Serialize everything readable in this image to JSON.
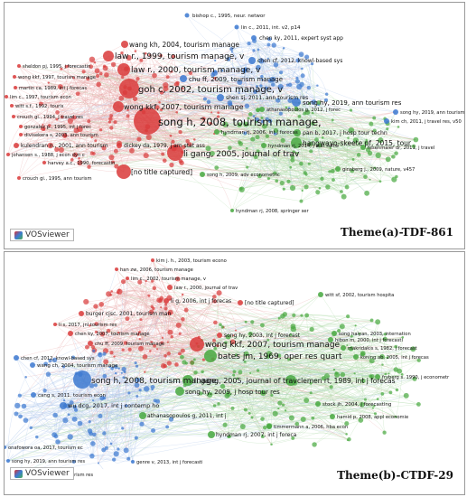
{
  "panel_a": {
    "caption": "Theme(a)-TDF-861",
    "brand": "VOSviewer",
    "labels": [
      {
        "text": "bishop c., 1995, neur. networ",
        "cluster": "blue"
      },
      {
        "text": "lin c., 2011, int. v2, p14",
        "cluster": "blue"
      },
      {
        "text": "chen ky, 2011, expert syst app",
        "cluster": "blue"
      },
      {
        "text": "wang kh, 2004, tourism manage",
        "cluster": "red"
      },
      {
        "text": "law r., 1999, tourism manage, v",
        "cluster": "red"
      },
      {
        "text": "chen cf, 2012, knowl-based sys",
        "cluster": "blue"
      },
      {
        "text": "sheldon pj, 1995, j forecastin",
        "cluster": "red"
      },
      {
        "text": "law r., 2000, tourism manage, v",
        "cluster": "red"
      },
      {
        "text": "wong kkf, 1997, tourism manage",
        "cluster": "red"
      },
      {
        "text": "chu ff, 2009, tourism manage",
        "cluster": "blue"
      },
      {
        "text": "martin ca, 1989, int j forecas",
        "cluster": "red"
      },
      {
        "text": "goh c, 2002, tourism manage, v",
        "cluster": "red"
      },
      {
        "text": "lim c., 1997, tourism econ",
        "cluster": "red"
      },
      {
        "text": "witt s.f., 1992, touris",
        "cluster": "red"
      },
      {
        "text": "crouch gi., 1994, j travel res",
        "cluster": "red"
      },
      {
        "text": "song hy, 2019, ann tourism res",
        "cluster": "blue"
      },
      {
        "text": "wong kkf, 2007, tourism manage",
        "cluster": "red"
      },
      {
        "text": "shen sj, 2011, ann tourism res",
        "cluster": "blue"
      },
      {
        "text": "gonzalez p., 1995, int j forec",
        "cluster": "red"
      },
      {
        "text": "divisekera s, 2003, ann tourism",
        "cluster": "red"
      },
      {
        "text": "song h, 2008, tourism manage,",
        "cluster": "red"
      },
      {
        "text": "kulendran n., 2001, ann tourism",
        "cluster": "red"
      },
      {
        "text": "johansen s., 1988, j econ dyn c",
        "cluster": "red"
      },
      {
        "text": "pan b, 2017, j hosp tour techn",
        "cluster": "green"
      },
      {
        "text": "li gang, 2005, journal of trav",
        "cluster": "red"
      },
      {
        "text": "hangwayo-skeete pf, 2015, tour",
        "cluster": "green"
      },
      {
        "text": "harvey a.c., 1990, forecastin",
        "cluster": "red"
      },
      {
        "text": "dickey da, 1979, j am stat ass",
        "cluster": "red"
      },
      {
        "text": "hyndman rj, 2006, int j forecas",
        "cluster": "green"
      },
      {
        "text": "crouch gi., 1995, ann tourism",
        "cluster": "red"
      },
      {
        "text": "hyndman rj, 2014, j stat softw",
        "cluster": "green"
      },
      {
        "text": "[no title captured]",
        "cluster": "red"
      },
      {
        "text": "song h, 2009, adv econometric",
        "cluster": "green"
      },
      {
        "text": "ginsberg j., 2009, nature, v457",
        "cluster": "green"
      },
      {
        "text": "fesenmaier dr, 2011, j travel",
        "cluster": "green"
      },
      {
        "text": "hyndman rj, 2008, springer ser",
        "cluster": "green"
      },
      {
        "text": "song hy, 2019, ann tourism res",
        "cluster": "blue"
      },
      {
        "text": "kim ch, 2011, j travel res, v50",
        "cluster": "blue"
      },
      {
        "text": "athanasopoulos g, 2012, j forec",
        "cluster": "green"
      }
    ]
  },
  "panel_b": {
    "caption": "Theme(b)-CTDF-29",
    "brand": "VOSviewer",
    "labels": [
      {
        "text": "kim j. h., 2003, tourism econo",
        "cluster": "red"
      },
      {
        "text": "han zw, 2006, tourism manage",
        "cluster": "red"
      },
      {
        "text": "lim c., 2002, tourism manage, v",
        "cluster": "red"
      },
      {
        "text": "law r., 2000, journal of trav",
        "cluster": "red"
      },
      {
        "text": "li g, 2006, int j forecas",
        "cluster": "red"
      },
      {
        "text": "[no title captured]",
        "cluster": "red"
      },
      {
        "text": "witt sf, 2002, tourism hospita",
        "cluster": "green"
      },
      {
        "text": "burger cjsc, 2001, tourism man",
        "cluster": "red"
      },
      {
        "text": "li s, 2017, jnl tourism res",
        "cluster": "red"
      },
      {
        "text": "song hy, 2003, int j forecast",
        "cluster": "red"
      },
      {
        "text": "song haiyan, 2003, internation",
        "cluster": "green"
      },
      {
        "text": "chen ky, 2007, tourism manage",
        "cluster": "red"
      },
      {
        "text": "hibon m, 2000, int j forecasti",
        "cluster": "green"
      },
      {
        "text": "chu ff, 2009, tourism manage",
        "cluster": "red"
      },
      {
        "text": "makridakis s, 1982, j forecast",
        "cluster": "green"
      },
      {
        "text": "wong kkf, 2007, tourism manage",
        "cluster": "red"
      },
      {
        "text": "chen cf, 2012, knowl-based sys",
        "cluster": "blue"
      },
      {
        "text": "bates jm, 1969, oper res quart",
        "cluster": "green"
      },
      {
        "text": "koning ab, 2005, int j forecas",
        "cluster": "green"
      },
      {
        "text": "wang ch, 2004, tourism manage",
        "cluster": "blue"
      },
      {
        "text": "song h, 2008, tourism manage,",
        "cluster": "blue"
      },
      {
        "text": "li gang, 2005, journal of trav",
        "cluster": "green"
      },
      {
        "text": "clemen rt, 1989, int j forecas",
        "cluster": "green"
      },
      {
        "text": "song hy, 2009, j hosp tour res",
        "cluster": "green"
      },
      {
        "text": "fryberg s. 1990, j econometr",
        "cluster": "green"
      },
      {
        "text": "cang s, 2011, tourism econ",
        "cluster": "blue"
      },
      {
        "text": "wu dcg, 2017, int j contemp ho",
        "cluster": "blue"
      },
      {
        "text": "stock jh, 2004, j forecasting",
        "cluster": "green"
      },
      {
        "text": "athanasopoulos g, 2011, int j",
        "cluster": "green"
      },
      {
        "text": "hamid p, 2008, appl economie",
        "cluster": "green"
      },
      {
        "text": "timmermann a, 2006, hba econ",
        "cluster": "green"
      },
      {
        "text": "onafowora oa, 2017, tourism ec",
        "cluster": "blue"
      },
      {
        "text": "hyndman rj, 2007, int j foreca",
        "cluster": "green"
      },
      {
        "text": "song hy, 2019, ann tourism res",
        "cluster": "blue"
      },
      {
        "text": "genre v, 2013, int j forecasti",
        "cluster": "blue"
      },
      {
        "text": "wu rtr, 2021, ann tourism res",
        "cluster": "blue"
      }
    ]
  },
  "colors": {
    "red": "#d93a3a",
    "blue": "#3b78d0",
    "green": "#47a83f",
    "edge_red": "#e9a6a6",
    "edge_blue": "#a9c4ea",
    "edge_green": "#aad7a3"
  }
}
